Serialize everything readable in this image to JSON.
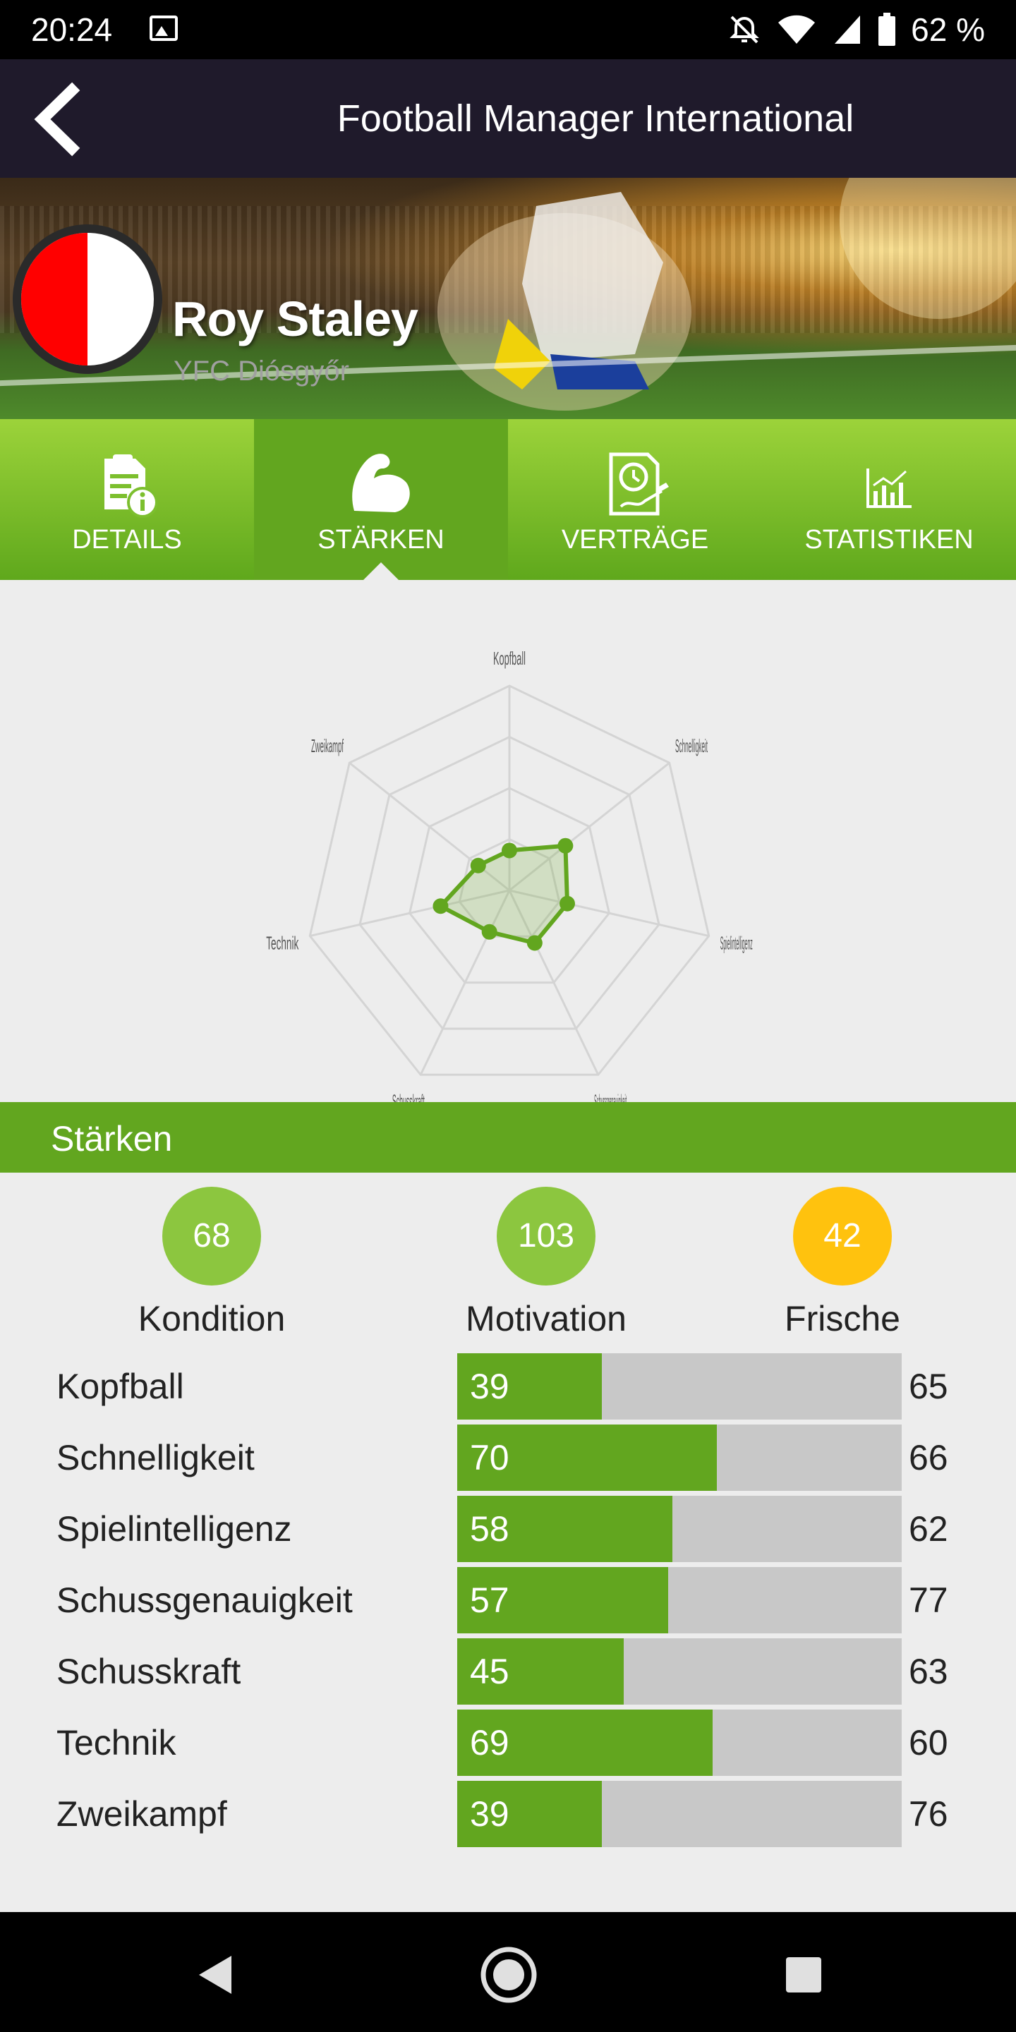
{
  "status_bar": {
    "time": "20:24",
    "battery_percent": "62 %",
    "icons": [
      "image-icon",
      "alarm-off-icon",
      "wifi-icon",
      "signal-icon",
      "battery-icon"
    ]
  },
  "app_bar": {
    "title": "Football Manager International",
    "back_icon": "chevron-left-icon"
  },
  "player": {
    "name": "Roy Staley",
    "club": "YFC Diósgyőr",
    "badge_colors": [
      "#ff0000",
      "#ffffff"
    ]
  },
  "tabs": [
    {
      "label": "DETAILS",
      "icon": "document-info-icon",
      "active": false
    },
    {
      "label": "STÄRKEN",
      "icon": "flexed-arm-icon",
      "active": true
    },
    {
      "label": "VERTRÄGE",
      "icon": "contract-clock-icon",
      "active": false
    },
    {
      "label": "STATISTIKEN",
      "icon": "bar-chart-icon",
      "active": false
    }
  ],
  "chart_data": {
    "type": "radar",
    "axes": [
      "Kopfball",
      "Schnelligkeit",
      "Spielintelligenz",
      "Schussgenauigkeit",
      "Schusskraft",
      "Technik",
      "Zweikampf"
    ],
    "values": [
      39,
      70,
      58,
      57,
      45,
      69,
      39
    ],
    "range": [
      0,
      200
    ],
    "rings": 4,
    "color": "#62a61f"
  },
  "section": {
    "title": "Stärken"
  },
  "summary": [
    {
      "label": "Kondition",
      "value": "68",
      "color": "#8cc63f"
    },
    {
      "label": "Motivation",
      "value": "103",
      "color": "#8cc63f"
    },
    {
      "label": "Frische",
      "value": "42",
      "color": "#ffc20e"
    }
  ],
  "skills": [
    {
      "label": "Kopfball",
      "value": 39,
      "value_text": "39",
      "right": "65"
    },
    {
      "label": "Schnelligkeit",
      "value": 70,
      "value_text": "70",
      "right": "66"
    },
    {
      "label": "Spielintelligenz",
      "value": 58,
      "value_text": "58",
      "right": "62"
    },
    {
      "label": "Schussgenauigkeit",
      "value": 57,
      "value_text": "57",
      "right": "77"
    },
    {
      "label": "Schusskraft",
      "value": 45,
      "value_text": "45",
      "right": "63"
    },
    {
      "label": "Technik",
      "value": 69,
      "value_text": "69",
      "right": "60"
    },
    {
      "label": "Zweikampf",
      "value": 39,
      "value_text": "39",
      "right": "76"
    }
  ],
  "skills_max": 120,
  "nav_bar": [
    "back-triangle-icon",
    "home-circle-icon",
    "recents-square-icon"
  ]
}
